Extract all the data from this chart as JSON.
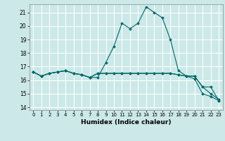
{
  "title": "",
  "xlabel": "Humidex (Indice chaleur)",
  "background_color": "#cce8e8",
  "grid_color": "#ffffff",
  "line_color": "#006666",
  "xlim": [
    -0.5,
    23.5
  ],
  "ylim": [
    13.8,
    21.6
  ],
  "yticks": [
    14,
    15,
    16,
    17,
    18,
    19,
    20,
    21
  ],
  "xticks": [
    0,
    1,
    2,
    3,
    4,
    5,
    6,
    7,
    8,
    9,
    10,
    11,
    12,
    13,
    14,
    15,
    16,
    17,
    18,
    19,
    20,
    21,
    22,
    23
  ],
  "series": [
    {
      "x": [
        0,
        1,
        2,
        3,
        4,
        5,
        6,
        7,
        8,
        9,
        10,
        11,
        12,
        13,
        14,
        15,
        16,
        17,
        18,
        19,
        20,
        21,
        22,
        23
      ],
      "y": [
        16.6,
        16.3,
        16.5,
        16.6,
        16.7,
        16.5,
        16.4,
        16.2,
        16.2,
        17.3,
        18.5,
        20.2,
        19.8,
        20.2,
        21.4,
        21.0,
        20.6,
        19.0,
        16.7,
        16.3,
        16.3,
        15.5,
        15.5,
        14.5
      ]
    },
    {
      "x": [
        0,
        1,
        2,
        3,
        4,
        5,
        6,
        7,
        8,
        9,
        10,
        11,
        12,
        13,
        14,
        15,
        16,
        17,
        18,
        19,
        20,
        21,
        22,
        23
      ],
      "y": [
        16.6,
        16.3,
        16.5,
        16.6,
        16.7,
        16.5,
        16.4,
        16.2,
        16.5,
        16.5,
        16.5,
        16.5,
        16.5,
        16.5,
        16.5,
        16.5,
        16.5,
        16.5,
        16.4,
        16.3,
        16.3,
        15.5,
        15.0,
        14.6
      ]
    },
    {
      "x": [
        0,
        1,
        2,
        3,
        4,
        5,
        6,
        7,
        8,
        9,
        10,
        11,
        12,
        13,
        14,
        15,
        16,
        17,
        18,
        19,
        20,
        21,
        22,
        23
      ],
      "y": [
        16.6,
        16.3,
        16.5,
        16.6,
        16.7,
        16.5,
        16.4,
        16.2,
        16.5,
        16.5,
        16.5,
        16.5,
        16.5,
        16.5,
        16.5,
        16.5,
        16.5,
        16.5,
        16.4,
        16.3,
        16.1,
        15.0,
        14.8,
        14.5
      ]
    }
  ]
}
